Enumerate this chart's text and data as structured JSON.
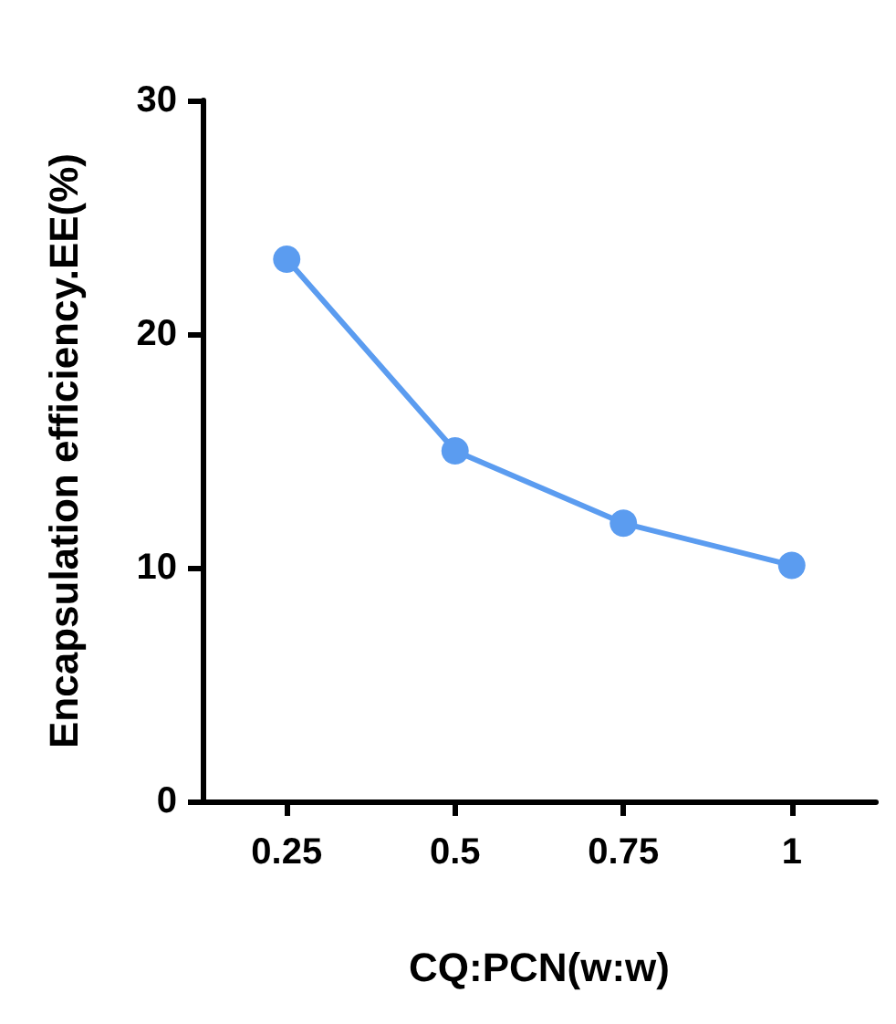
{
  "chart_data": {
    "type": "line",
    "xlabel": "CQ:PCN(w:w)",
    "ylabel": "Encapsulation efficiency.EE(%)",
    "categories": [
      "0.25",
      "0.5",
      "0.75",
      "1"
    ],
    "series": [
      {
        "color": "#5b9cf0",
        "values": [
          23.2,
          15.0,
          11.9,
          10.1
        ]
      }
    ],
    "ylim": [
      0,
      30
    ],
    "yticks": [
      0,
      10,
      20,
      30
    ],
    "grid": false,
    "marker": "circle",
    "line_style": "solid"
  }
}
